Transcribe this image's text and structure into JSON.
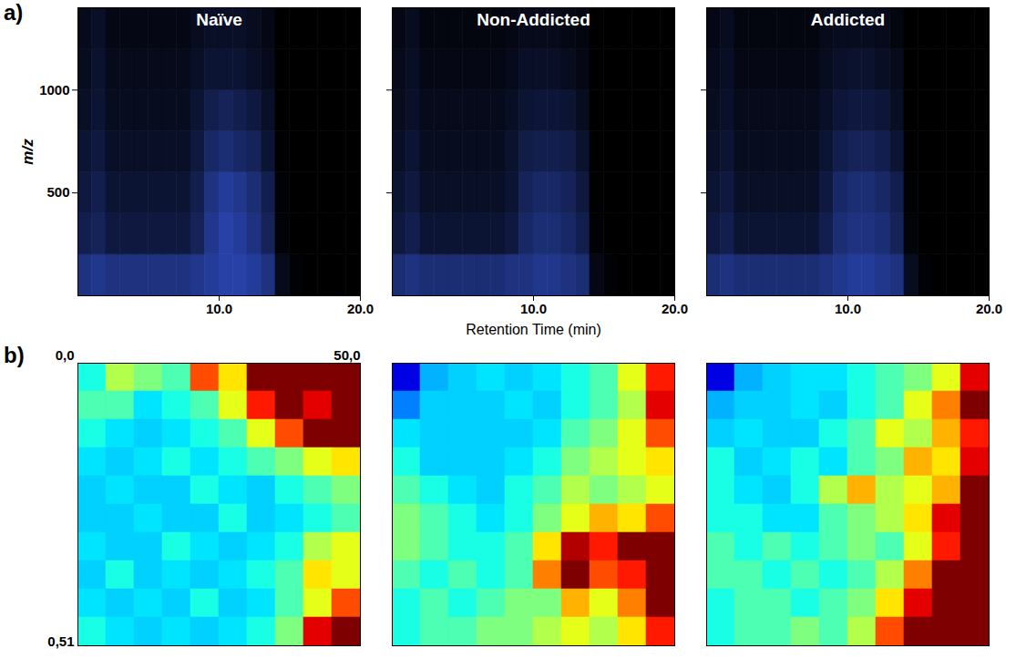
{
  "chart_data": [
    {
      "type": "heatmap",
      "panel_label": "a)",
      "title": "Naïve",
      "y_label": "m/z",
      "xlim": [
        0,
        20
      ],
      "ylim": [
        0,
        1400
      ],
      "xticks": [
        {
          "value": 10,
          "label": "10.0"
        },
        {
          "value": 20,
          "label": "20.0"
        }
      ],
      "yticks": [
        500,
        1000
      ],
      "x_edges": [
        0,
        1,
        2,
        3,
        4,
        5,
        6,
        7,
        8,
        9,
        10,
        11,
        12,
        13,
        14,
        15,
        16,
        17,
        18,
        19,
        20
      ],
      "y_edges": [
        0,
        200,
        400,
        600,
        800,
        1000,
        1200,
        1400
      ],
      "zlim": [
        0,
        1
      ],
      "z": [
        [
          0.5,
          0.55,
          0.5,
          0.5,
          0.5,
          0.5,
          0.5,
          0.5,
          0.55,
          0.6,
          0.65,
          0.65,
          0.6,
          0.5,
          0.1,
          0.02,
          0,
          0,
          0,
          0
        ],
        [
          0.3,
          0.35,
          0.25,
          0.25,
          0.25,
          0.25,
          0.25,
          0.25,
          0.35,
          0.55,
          0.65,
          0.6,
          0.5,
          0.35,
          0.03,
          0,
          0,
          0,
          0,
          0
        ],
        [
          0.25,
          0.3,
          0.2,
          0.2,
          0.2,
          0.2,
          0.2,
          0.2,
          0.3,
          0.5,
          0.6,
          0.55,
          0.45,
          0.3,
          0.02,
          0,
          0,
          0,
          0,
          0
        ],
        [
          0.2,
          0.25,
          0.15,
          0.15,
          0.15,
          0.15,
          0.15,
          0.15,
          0.25,
          0.4,
          0.45,
          0.4,
          0.35,
          0.2,
          0.01,
          0,
          0,
          0,
          0,
          0
        ],
        [
          0.15,
          0.2,
          0.12,
          0.12,
          0.12,
          0.12,
          0.12,
          0.12,
          0.2,
          0.3,
          0.35,
          0.3,
          0.25,
          0.15,
          0,
          0,
          0,
          0,
          0,
          0
        ],
        [
          0.12,
          0.18,
          0.1,
          0.1,
          0.1,
          0.1,
          0.1,
          0.1,
          0.15,
          0.2,
          0.2,
          0.2,
          0.15,
          0.1,
          0,
          0,
          0,
          0,
          0,
          0
        ],
        [
          0.1,
          0.15,
          0.08,
          0.08,
          0.08,
          0.08,
          0.08,
          0.08,
          0.12,
          0.15,
          0.15,
          0.15,
          0.12,
          0.08,
          0,
          0,
          0,
          0,
          0,
          0
        ]
      ]
    },
    {
      "type": "heatmap",
      "title": "Non-Addicted",
      "x_label": "Retention Time (min)",
      "tick_labels": "x",
      "xlim": [
        0,
        20
      ],
      "ylim": [
        0,
        1400
      ],
      "xticks": [
        {
          "value": 10,
          "label": "10.0"
        },
        {
          "value": 20,
          "label": "20.0"
        }
      ],
      "yticks": [
        500,
        1000
      ],
      "x_edges": [
        0,
        1,
        2,
        3,
        4,
        5,
        6,
        7,
        8,
        9,
        10,
        11,
        12,
        13,
        14,
        15,
        16,
        17,
        18,
        19,
        20
      ],
      "y_edges": [
        0,
        200,
        400,
        600,
        800,
        1000,
        1200,
        1400
      ],
      "zlim": [
        0,
        1
      ],
      "z": [
        [
          0.45,
          0.5,
          0.45,
          0.45,
          0.45,
          0.45,
          0.45,
          0.45,
          0.5,
          0.5,
          0.55,
          0.55,
          0.5,
          0.45,
          0.08,
          0.02,
          0,
          0,
          0,
          0
        ],
        [
          0.25,
          0.3,
          0.2,
          0.2,
          0.2,
          0.2,
          0.2,
          0.2,
          0.25,
          0.4,
          0.45,
          0.45,
          0.4,
          0.3,
          0.02,
          0,
          0,
          0,
          0,
          0
        ],
        [
          0.2,
          0.25,
          0.15,
          0.15,
          0.15,
          0.15,
          0.15,
          0.15,
          0.2,
          0.35,
          0.4,
          0.4,
          0.35,
          0.25,
          0.01,
          0,
          0,
          0,
          0,
          0
        ],
        [
          0.15,
          0.2,
          0.12,
          0.12,
          0.12,
          0.12,
          0.12,
          0.12,
          0.18,
          0.28,
          0.3,
          0.3,
          0.28,
          0.18,
          0,
          0,
          0,
          0,
          0,
          0
        ],
        [
          0.12,
          0.16,
          0.1,
          0.1,
          0.1,
          0.1,
          0.1,
          0.1,
          0.14,
          0.2,
          0.22,
          0.22,
          0.2,
          0.12,
          0,
          0,
          0,
          0,
          0,
          0
        ],
        [
          0.1,
          0.14,
          0.08,
          0.08,
          0.08,
          0.08,
          0.08,
          0.08,
          0.1,
          0.15,
          0.15,
          0.15,
          0.12,
          0.08,
          0,
          0,
          0,
          0,
          0,
          0
        ],
        [
          0.08,
          0.12,
          0.06,
          0.06,
          0.06,
          0.06,
          0.06,
          0.06,
          0.08,
          0.1,
          0.1,
          0.1,
          0.08,
          0.06,
          0,
          0,
          0,
          0,
          0,
          0
        ]
      ]
    },
    {
      "type": "heatmap",
      "title": "Addicted",
      "tick_labels": "x",
      "xlim": [
        0,
        20
      ],
      "ylim": [
        0,
        1400
      ],
      "xticks": [
        {
          "value": 10,
          "label": "10.0"
        },
        {
          "value": 20,
          "label": "20.0"
        }
      ],
      "yticks": [
        500,
        1000
      ],
      "x_edges": [
        0,
        1,
        2,
        3,
        4,
        5,
        6,
        7,
        8,
        9,
        10,
        11,
        12,
        13,
        14,
        15,
        16,
        17,
        18,
        19,
        20
      ],
      "y_edges": [
        0,
        200,
        400,
        600,
        800,
        1000,
        1200,
        1400
      ],
      "zlim": [
        0,
        1
      ],
      "z": [
        [
          0.45,
          0.5,
          0.45,
          0.45,
          0.45,
          0.45,
          0.45,
          0.45,
          0.5,
          0.55,
          0.6,
          0.6,
          0.55,
          0.5,
          0.12,
          0.02,
          0,
          0,
          0,
          0
        ],
        [
          0.25,
          0.3,
          0.2,
          0.2,
          0.2,
          0.2,
          0.2,
          0.2,
          0.3,
          0.45,
          0.5,
          0.5,
          0.45,
          0.35,
          0.04,
          0,
          0,
          0,
          0,
          0
        ],
        [
          0.2,
          0.25,
          0.15,
          0.15,
          0.15,
          0.15,
          0.15,
          0.15,
          0.25,
          0.4,
          0.45,
          0.45,
          0.4,
          0.3,
          0.02,
          0,
          0,
          0,
          0,
          0
        ],
        [
          0.15,
          0.2,
          0.12,
          0.12,
          0.12,
          0.12,
          0.12,
          0.12,
          0.2,
          0.3,
          0.35,
          0.35,
          0.3,
          0.2,
          0.01,
          0,
          0,
          0,
          0,
          0
        ],
        [
          0.12,
          0.16,
          0.1,
          0.1,
          0.1,
          0.1,
          0.1,
          0.1,
          0.15,
          0.22,
          0.25,
          0.25,
          0.22,
          0.14,
          0,
          0,
          0,
          0,
          0,
          0
        ],
        [
          0.1,
          0.14,
          0.08,
          0.08,
          0.08,
          0.08,
          0.08,
          0.08,
          0.12,
          0.16,
          0.18,
          0.18,
          0.14,
          0.1,
          0,
          0,
          0,
          0,
          0,
          0
        ],
        [
          0.08,
          0.12,
          0.06,
          0.06,
          0.06,
          0.06,
          0.06,
          0.06,
          0.1,
          0.12,
          0.12,
          0.12,
          0.1,
          0.06,
          0,
          0,
          0,
          0,
          0,
          0
        ]
      ]
    },
    {
      "type": "heatmap",
      "panel_label": "b)",
      "tick_labels": false,
      "xlim": [
        0,
        50
      ],
      "ylim": [
        0,
        51
      ],
      "annotations": [
        {
          "text": "0,0",
          "x": 0,
          "y": 0
        },
        {
          "text": "50,0",
          "x": 50,
          "y": 0
        },
        {
          "text": "0,51",
          "x": 0,
          "y": 51
        }
      ],
      "x_edges": [
        0,
        5,
        10,
        15,
        20,
        25,
        30,
        35,
        40,
        45,
        50
      ],
      "y_edges": [
        0,
        5.1,
        10.2,
        15.3,
        20.4,
        25.5,
        30.6,
        35.7,
        40.8,
        45.9,
        51
      ],
      "zlim": [
        0,
        1
      ],
      "z": [
        [
          0.4,
          0.55,
          0.5,
          0.45,
          0.8,
          0.65,
          1,
          1,
          1,
          1
        ],
        [
          0.45,
          0.45,
          0.35,
          0.4,
          0.45,
          0.6,
          0.85,
          1,
          0.9,
          1
        ],
        [
          0.4,
          0.35,
          0.33,
          0.35,
          0.4,
          0.45,
          0.6,
          0.8,
          1,
          1
        ],
        [
          0.35,
          0.33,
          0.35,
          0.4,
          0.35,
          0.4,
          0.45,
          0.5,
          0.6,
          0.65
        ],
        [
          0.33,
          0.35,
          0.33,
          0.33,
          0.4,
          0.35,
          0.33,
          0.4,
          0.45,
          0.5
        ],
        [
          0.33,
          0.33,
          0.35,
          0.33,
          0.33,
          0.4,
          0.33,
          0.35,
          0.4,
          0.45
        ],
        [
          0.35,
          0.33,
          0.33,
          0.4,
          0.35,
          0.33,
          0.35,
          0.4,
          0.55,
          0.6
        ],
        [
          0.33,
          0.4,
          0.33,
          0.35,
          0.33,
          0.35,
          0.4,
          0.45,
          0.65,
          0.6
        ],
        [
          0.35,
          0.33,
          0.35,
          0.33,
          0.4,
          0.33,
          0.35,
          0.45,
          0.6,
          0.8
        ],
        [
          0.4,
          0.35,
          0.33,
          0.35,
          0.33,
          0.35,
          0.4,
          0.5,
          0.9,
          1
        ]
      ]
    },
    {
      "type": "heatmap",
      "tick_labels": false,
      "xlim": [
        0,
        50
      ],
      "ylim": [
        0,
        51
      ],
      "x_edges": [
        0,
        5,
        10,
        15,
        20,
        25,
        30,
        35,
        40,
        45,
        50
      ],
      "y_edges": [
        0,
        5.1,
        10.2,
        15.3,
        20.4,
        25.5,
        30.6,
        35.7,
        40.8,
        45.9,
        51
      ],
      "zlim": [
        0,
        1
      ],
      "z": [
        [
          0.1,
          0.3,
          0.33,
          0.35,
          0.33,
          0.35,
          0.4,
          0.45,
          0.6,
          0.85
        ],
        [
          0.25,
          0.33,
          0.33,
          0.33,
          0.35,
          0.33,
          0.4,
          0.45,
          0.55,
          0.9
        ],
        [
          0.35,
          0.33,
          0.33,
          0.33,
          0.33,
          0.35,
          0.45,
          0.5,
          0.6,
          0.8
        ],
        [
          0.4,
          0.33,
          0.33,
          0.33,
          0.35,
          0.4,
          0.5,
          0.55,
          0.6,
          0.65
        ],
        [
          0.45,
          0.4,
          0.35,
          0.33,
          0.4,
          0.45,
          0.55,
          0.5,
          0.55,
          0.6
        ],
        [
          0.5,
          0.45,
          0.4,
          0.35,
          0.4,
          0.5,
          0.6,
          0.7,
          0.65,
          0.8
        ],
        [
          0.5,
          0.45,
          0.4,
          0.4,
          0.45,
          0.65,
          0.95,
          0.85,
          1,
          1
        ],
        [
          0.45,
          0.4,
          0.45,
          0.4,
          0.45,
          0.75,
          1,
          0.8,
          0.85,
          1
        ],
        [
          0.4,
          0.45,
          0.4,
          0.45,
          0.5,
          0.5,
          0.7,
          0.6,
          0.75,
          1
        ],
        [
          0.4,
          0.45,
          0.45,
          0.5,
          0.5,
          0.55,
          0.6,
          0.55,
          0.65,
          0.85
        ]
      ]
    },
    {
      "type": "heatmap",
      "tick_labels": false,
      "xlim": [
        0,
        50
      ],
      "ylim": [
        0,
        51
      ],
      "x_edges": [
        0,
        5,
        10,
        15,
        20,
        25,
        30,
        35,
        40,
        45,
        50
      ],
      "y_edges": [
        0,
        5.1,
        10.2,
        15.3,
        20.4,
        25.5,
        30.6,
        35.7,
        40.8,
        45.9,
        51
      ],
      "zlim": [
        0,
        1
      ],
      "z": [
        [
          0.1,
          0.3,
          0.33,
          0.35,
          0.35,
          0.4,
          0.45,
          0.5,
          0.6,
          0.9
        ],
        [
          0.3,
          0.33,
          0.33,
          0.35,
          0.33,
          0.4,
          0.45,
          0.6,
          0.75,
          1
        ],
        [
          0.33,
          0.35,
          0.33,
          0.33,
          0.4,
          0.45,
          0.6,
          0.55,
          0.7,
          0.85
        ],
        [
          0.4,
          0.33,
          0.35,
          0.4,
          0.35,
          0.45,
          0.5,
          0.7,
          0.65,
          0.9
        ],
        [
          0.4,
          0.35,
          0.33,
          0.4,
          0.55,
          0.7,
          0.55,
          0.6,
          0.7,
          1
        ],
        [
          0.4,
          0.4,
          0.35,
          0.35,
          0.45,
          0.5,
          0.55,
          0.65,
          0.9,
          1
        ],
        [
          0.45,
          0.4,
          0.45,
          0.4,
          0.45,
          0.5,
          0.45,
          0.6,
          0.85,
          1
        ],
        [
          0.45,
          0.45,
          0.4,
          0.45,
          0.4,
          0.45,
          0.55,
          0.75,
          1,
          1
        ],
        [
          0.4,
          0.45,
          0.45,
          0.4,
          0.45,
          0.5,
          0.65,
          0.9,
          1,
          1
        ],
        [
          0.4,
          0.45,
          0.45,
          0.5,
          0.45,
          0.55,
          0.8,
          1,
          1,
          1
        ]
      ]
    }
  ]
}
